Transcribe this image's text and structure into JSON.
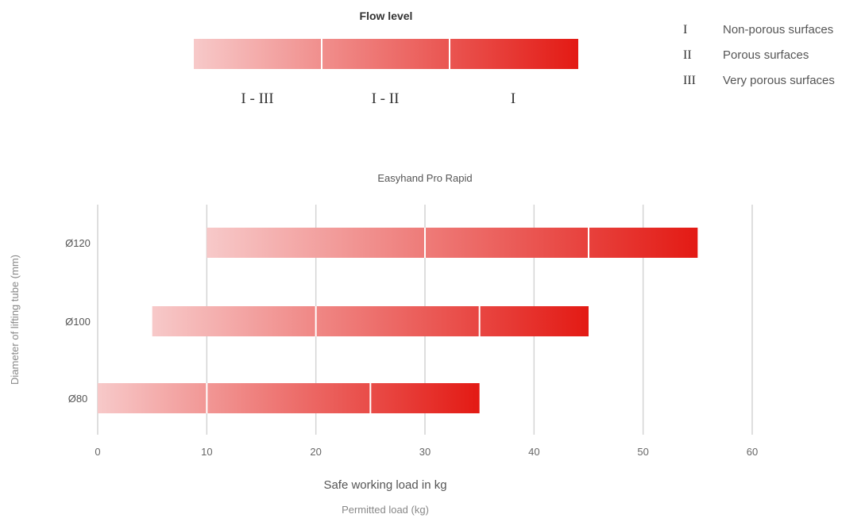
{
  "flow": {
    "title": "Flow level",
    "segments": [
      "I - III",
      "I - II",
      "I"
    ]
  },
  "legend": [
    {
      "roman": "I",
      "label": "Non-porous surfaces"
    },
    {
      "roman": "II",
      "label": "Porous surfaces"
    },
    {
      "roman": "III",
      "label": "Very porous surfaces"
    }
  ],
  "colors": {
    "light": "#f7c9c9",
    "dark": "#e31a14",
    "grid": "#d4d4d4"
  },
  "chart_data": {
    "type": "bar",
    "title": "Easyhand Pro Rapid",
    "xlabel": "Safe working load in kg",
    "xlabel_secondary": "Permitted load (kg)",
    "ylabel": "Diameter of lifting tube (mm)",
    "xlim": [
      0,
      60
    ],
    "xticks": [
      0,
      10,
      20,
      30,
      40,
      50,
      60
    ],
    "grid": true,
    "categories": [
      "Ø120",
      "Ø100",
      "Ø80"
    ],
    "series": [
      {
        "category": "Ø120",
        "start": 10,
        "breaks": [
          30,
          45
        ],
        "end": 55
      },
      {
        "category": "Ø100",
        "start": 5,
        "breaks": [
          20,
          35
        ],
        "end": 45
      },
      {
        "category": "Ø80",
        "start": 0,
        "breaks": [
          10,
          25
        ],
        "end": 35
      }
    ]
  }
}
